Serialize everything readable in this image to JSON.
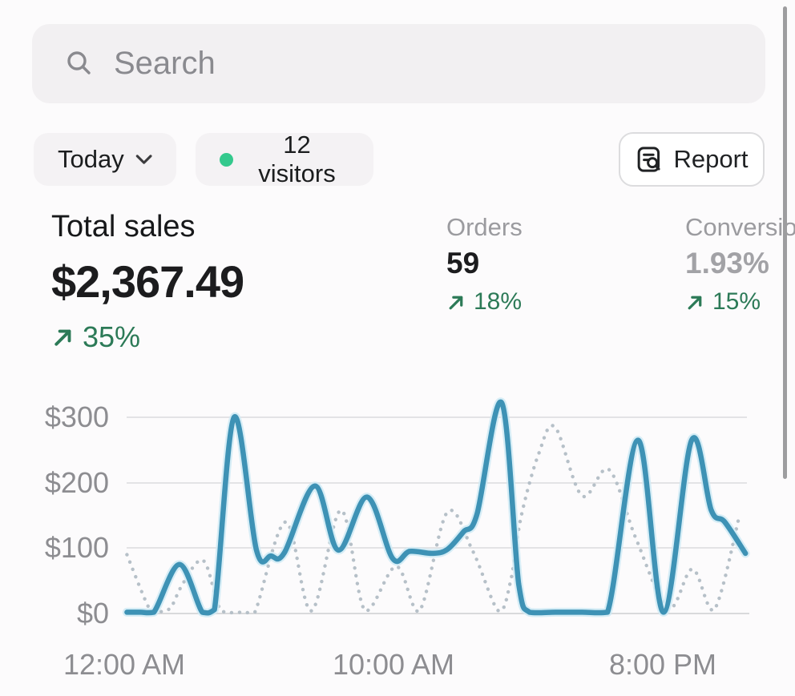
{
  "search": {
    "placeholder": "Search"
  },
  "toolbar": {
    "date_filter": {
      "label": "Today"
    },
    "visitors_badge": {
      "count_label": "12 visitors"
    },
    "report_button": {
      "label": "Report"
    }
  },
  "metrics": {
    "total_sales": {
      "label": "Total sales",
      "value": "$2,367.49",
      "delta": "35%",
      "trend": "up"
    },
    "orders": {
      "label": "Orders",
      "value": "59",
      "delta": "18%",
      "trend": "up"
    },
    "conversion": {
      "label": "Conversion",
      "value": "1.93%",
      "delta": "15%",
      "trend": "up"
    }
  },
  "colors": {
    "accent_teal": "#3e92b5",
    "comparison_gray": "#b6c0c8",
    "success_green": "#2c7a57",
    "visitor_dot_green": "#34c98d"
  },
  "chart_data": {
    "type": "line",
    "grid": true,
    "legend": "none",
    "x_axis": {
      "unit": "hour_of_day",
      "range": [
        0,
        23.1
      ],
      "tick_hours": [
        0,
        10,
        20
      ],
      "tick_labels": [
        "12:00 AM",
        "10:00 AM",
        "8:00 PM"
      ]
    },
    "y_axis": {
      "unit": "$",
      "range": [
        0,
        300
      ],
      "tick_values": [
        0,
        100,
        200,
        300
      ],
      "tick_labels": [
        "$0",
        "$100",
        "$200",
        "$300"
      ]
    },
    "series": [
      {
        "name": "today-sales",
        "style": "solid",
        "color": "#3e92b5",
        "halo_color": "#cfeaf4",
        "points": [
          [
            0.1,
            2
          ],
          [
            0.6,
            2
          ],
          [
            1.1,
            2
          ],
          [
            2.05,
            75
          ],
          [
            2.9,
            2
          ],
          [
            3.35,
            6
          ],
          [
            4.08,
            300
          ],
          [
            4.91,
            97
          ],
          [
            5.45,
            88
          ],
          [
            5.95,
            93
          ],
          [
            7.08,
            195
          ],
          [
            7.95,
            97
          ],
          [
            9.02,
            178
          ],
          [
            9.97,
            84
          ],
          [
            10.6,
            95
          ],
          [
            11.45,
            92
          ],
          [
            12.0,
            98
          ],
          [
            12.6,
            125
          ],
          [
            13.1,
            152
          ],
          [
            14.02,
            322
          ],
          [
            14.65,
            45
          ],
          [
            15.05,
            2
          ],
          [
            16.0,
            2
          ],
          [
            17.0,
            2
          ],
          [
            17.95,
            2
          ],
          [
            19.08,
            265
          ],
          [
            20.03,
            2
          ],
          [
            21.07,
            265
          ],
          [
            21.8,
            158
          ],
          [
            22.3,
            140
          ],
          [
            23.07,
            92
          ]
        ]
      },
      {
        "name": "comparison-period",
        "style": "dotted",
        "color": "#b6c0c8",
        "points": [
          [
            0.1,
            90
          ],
          [
            0.9,
            10
          ],
          [
            1.2,
            3
          ],
          [
            1.7,
            8
          ],
          [
            2.1,
            40
          ],
          [
            2.7,
            78
          ],
          [
            3.05,
            74
          ],
          [
            3.5,
            12
          ],
          [
            3.8,
            2
          ],
          [
            4.4,
            2
          ],
          [
            4.85,
            2
          ],
          [
            6.0,
            140
          ],
          [
            6.95,
            4
          ],
          [
            8.05,
            158
          ],
          [
            8.95,
            4
          ],
          [
            10.1,
            72
          ],
          [
            10.95,
            3
          ],
          [
            12.0,
            155
          ],
          [
            12.95,
            95
          ],
          [
            13.9,
            4
          ],
          [
            14.35,
            50
          ],
          [
            14.75,
            150
          ],
          [
            15.4,
            245
          ],
          [
            16.0,
            285
          ],
          [
            17.0,
            180
          ],
          [
            18.0,
            220
          ],
          [
            19.0,
            115
          ],
          [
            20.2,
            8
          ],
          [
            21.1,
            68
          ],
          [
            21.9,
            5
          ],
          [
            22.85,
            150
          ]
        ]
      }
    ]
  }
}
